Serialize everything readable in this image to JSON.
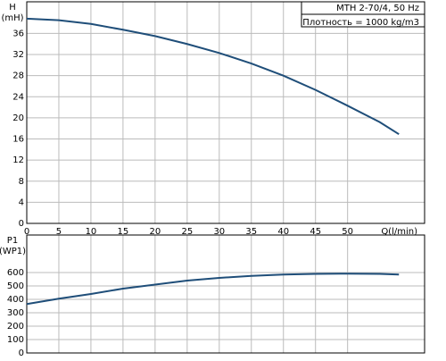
{
  "chart_data": [
    {
      "type": "line",
      "ylabel": [
        "H",
        "(mH)"
      ],
      "xlabel": "Q(l/min)",
      "annotations": [
        "MTH 2-70/4, 50 Hz",
        "Плотность = 1000 kg/m3"
      ],
      "x": [
        0,
        5,
        10,
        15,
        20,
        25,
        30,
        35,
        40,
        45,
        50,
        55,
        58
      ],
      "series": [
        {
          "name": "H",
          "color": "#1f4e79",
          "values": [
            38.8,
            38.5,
            37.8,
            36.7,
            35.5,
            34,
            32.3,
            30.3,
            28,
            25.3,
            22.3,
            19.2,
            16.9
          ]
        }
      ],
      "xlim": [
        0,
        62
      ],
      "xticks": [
        0,
        5,
        10,
        15,
        20,
        25,
        30,
        35,
        40,
        45,
        50
      ],
      "ylim": [
        0,
        42
      ],
      "yticks": [
        0,
        4,
        8,
        12,
        16,
        20,
        24,
        28,
        32,
        36
      ],
      "grid": true
    },
    {
      "type": "line",
      "ylabel": [
        "P1",
        "(WP1)"
      ],
      "x": [
        0,
        5,
        10,
        15,
        20,
        25,
        30,
        35,
        40,
        45,
        50,
        55,
        58
      ],
      "series": [
        {
          "name": "P1",
          "color": "#1f4e79",
          "values": [
            365,
            405,
            440,
            480,
            510,
            540,
            560,
            575,
            585,
            590,
            592,
            590,
            585
          ]
        }
      ],
      "xlim": [
        0,
        62
      ],
      "xticks": [
        0,
        5,
        10,
        15,
        20,
        25,
        30,
        35,
        40,
        45,
        50
      ],
      "ylim": [
        0,
        880
      ],
      "yticks": [
        0,
        100,
        200,
        300,
        400,
        500,
        600
      ],
      "grid": true
    }
  ]
}
